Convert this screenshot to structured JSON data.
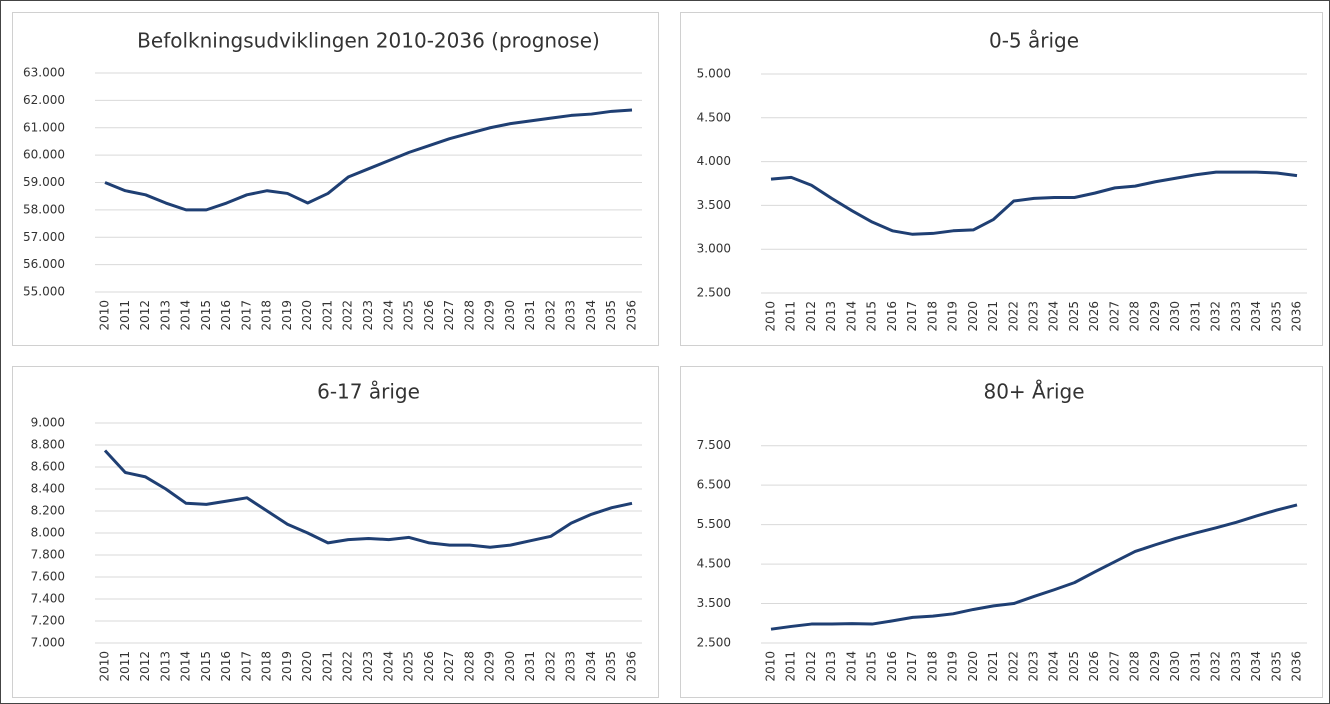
{
  "chart_data": [
    {
      "type": "line",
      "title": "Befolkningsudviklingen 2010-2036 (prognose)",
      "categories": [
        "2010",
        "2011",
        "2012",
        "2013",
        "2014",
        "2015",
        "2016",
        "2017",
        "2018",
        "2019",
        "2020",
        "2021",
        "2022",
        "2023",
        "2024",
        "2025",
        "2026",
        "2027",
        "2028",
        "2029",
        "2030",
        "2031",
        "2032",
        "2033",
        "2034",
        "2035",
        "2036"
      ],
      "values": [
        59000,
        58700,
        58550,
        58250,
        58000,
        58000,
        58250,
        58550,
        58700,
        58600,
        58250,
        58600,
        59200,
        59500,
        59800,
        60100,
        60350,
        60600,
        60800,
        61000,
        61150,
        61250,
        61350,
        61450,
        61500,
        61600,
        61650
      ],
      "color": "#1f3f73",
      "ylim": [
        55000,
        63000
      ],
      "yticks": [
        {
          "value": 55000,
          "label": "55.000"
        },
        {
          "value": 56000,
          "label": "56.000"
        },
        {
          "value": 57000,
          "label": "57.000"
        },
        {
          "value": 58000,
          "label": "58.000"
        },
        {
          "value": 59000,
          "label": "59.000"
        },
        {
          "value": 60000,
          "label": "60.000"
        },
        {
          "value": 61000,
          "label": "61.000"
        },
        {
          "value": 62000,
          "label": "62.000"
        },
        {
          "value": 63000,
          "label": "63.000"
        }
      ],
      "grid": true
    },
    {
      "type": "line",
      "title": "0-5 årige",
      "categories": [
        "2010",
        "2011",
        "2012",
        "2013",
        "2014",
        "2015",
        "2016",
        "2017",
        "2018",
        "2019",
        "2020",
        "2021",
        "2022",
        "2023",
        "2024",
        "2025",
        "2026",
        "2027",
        "2028",
        "2029",
        "2030",
        "2031",
        "2032",
        "2033",
        "2034",
        "2035",
        "2036"
      ],
      "values": [
        3800,
        3820,
        3730,
        3580,
        3440,
        3310,
        3210,
        3170,
        3180,
        3210,
        3220,
        3340,
        3550,
        3580,
        3590,
        3590,
        3640,
        3700,
        3720,
        3770,
        3810,
        3850,
        3880,
        3880,
        3880,
        3870,
        3840
      ],
      "color": "#1f3f73",
      "ylim": [
        2500,
        5000
      ],
      "yticks": [
        {
          "value": 2500,
          "label": "2.500"
        },
        {
          "value": 3000,
          "label": "3.000"
        },
        {
          "value": 3500,
          "label": "3.500"
        },
        {
          "value": 4000,
          "label": "4.000"
        },
        {
          "value": 4500,
          "label": "4.500"
        },
        {
          "value": 5000,
          "label": "5.000"
        }
      ],
      "grid": true
    },
    {
      "type": "line",
      "title": "6-17 årige",
      "categories": [
        "2010",
        "2011",
        "2012",
        "2013",
        "2014",
        "2015",
        "2016",
        "2017",
        "2018",
        "2019",
        "2020",
        "2021",
        "2022",
        "2023",
        "2024",
        "2025",
        "2026",
        "2027",
        "2028",
        "2029",
        "2030",
        "2031",
        "2032",
        "2033",
        "2034",
        "2035",
        "2036"
      ],
      "values": [
        8750,
        8550,
        8510,
        8400,
        8270,
        8260,
        8290,
        8320,
        8200,
        8080,
        8000,
        7910,
        7940,
        7950,
        7940,
        7960,
        7910,
        7890,
        7890,
        7870,
        7890,
        7930,
        7970,
        8090,
        8170,
        8230,
        8270
      ],
      "color": "#1f3f73",
      "ylim": [
        7000,
        9000
      ],
      "yticks": [
        {
          "value": 7000,
          "label": "7.000"
        },
        {
          "value": 7200,
          "label": "7.200"
        },
        {
          "value": 7400,
          "label": "7.400"
        },
        {
          "value": 7600,
          "label": "7.600"
        },
        {
          "value": 7800,
          "label": "7.800"
        },
        {
          "value": 8000,
          "label": "8.000"
        },
        {
          "value": 8200,
          "label": "8.200"
        },
        {
          "value": 8400,
          "label": "8.400"
        },
        {
          "value": 8600,
          "label": "8.600"
        },
        {
          "value": 8800,
          "label": "8.800"
        },
        {
          "value": 9000,
          "label": "9.000"
        }
      ],
      "grid": true
    },
    {
      "type": "line",
      "title": "80+ Årige",
      "categories": [
        "2010",
        "2011",
        "2012",
        "2013",
        "2014",
        "2015",
        "2016",
        "2017",
        "2018",
        "2019",
        "2020",
        "2021",
        "2022",
        "2023",
        "2024",
        "2025",
        "2026",
        "2027",
        "2028",
        "2029",
        "2030",
        "2031",
        "2032",
        "2033",
        "2034",
        "2035",
        "2036"
      ],
      "values": [
        2850,
        2920,
        2980,
        2980,
        2990,
        2980,
        3060,
        3150,
        3180,
        3240,
        3350,
        3440,
        3500,
        3680,
        3850,
        4030,
        4300,
        4560,
        4820,
        4990,
        5150,
        5290,
        5420,
        5560,
        5720,
        5870,
        6000
      ],
      "color": "#1f3f73",
      "ylim": [
        2500,
        8000
      ],
      "yticks": [
        {
          "value": 2500,
          "label": "2.500"
        },
        {
          "value": 3500,
          "label": "3.500"
        },
        {
          "value": 4500,
          "label": "4.500"
        },
        {
          "value": 5500,
          "label": "5.500"
        },
        {
          "value": 6500,
          "label": "6.500"
        },
        {
          "value": 7500,
          "label": "7.500"
        }
      ],
      "grid": true
    }
  ]
}
